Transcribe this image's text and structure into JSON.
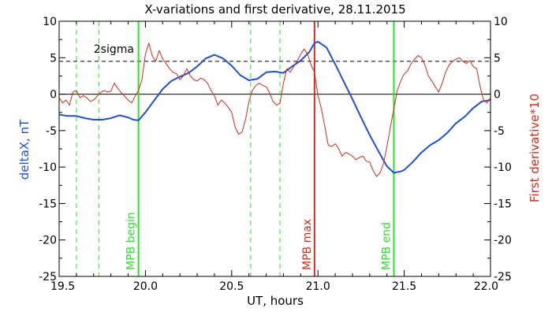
{
  "chart_data": {
    "type": "line",
    "title": "X-variations and first derivative, 28.11.2015",
    "xlabel": "UT, hours",
    "ylabel_left": "deltaX, nT",
    "ylabel_right": "First derivative*10",
    "xlim": [
      19.5,
      22.0
    ],
    "ylim": [
      -25,
      10
    ],
    "xticks": [
      19.5,
      20.0,
      20.5,
      21.0,
      21.5,
      22.0
    ],
    "xtick_labels": [
      "19.5",
      "20.0",
      "20.5",
      "21.0",
      "21.5",
      "22.0"
    ],
    "yticks": [
      10,
      5,
      0,
      -5,
      -10,
      -15,
      -20,
      -25
    ],
    "ytick_labels": [
      "10",
      "5",
      "0",
      "-5",
      "-10",
      "-15",
      "-20",
      "-25"
    ],
    "grid": false,
    "colors": {
      "deltaX": "#1f4fd6",
      "derivative": "#d62a1a",
      "mpb_edges": "#2ee02e",
      "mpb_max": "#d62a1a",
      "dashed_green": "#2ee02e",
      "zero_line": "#000000",
      "sigma_line": "#000000"
    },
    "sigma_level": 4.5,
    "annotations": [
      {
        "text": "2sigma",
        "x": 19.7,
        "y": 5.7
      }
    ],
    "vertical_lines": [
      {
        "x": 19.96,
        "label": "MPB begin",
        "color": "#2ee02e",
        "style": "solid"
      },
      {
        "x": 20.98,
        "label": "MPB max",
        "color": "#d62a1a",
        "style": "solid"
      },
      {
        "x": 21.44,
        "label": "MPB end",
        "color": "#2ee02e",
        "style": "solid"
      },
      {
        "x": 19.6,
        "label": "",
        "color": "#2ee02e",
        "style": "dashed"
      },
      {
        "x": 19.73,
        "label": "",
        "color": "#2ee02e",
        "style": "dashed"
      },
      {
        "x": 20.61,
        "label": "",
        "color": "#2ee02e",
        "style": "dashed"
      },
      {
        "x": 20.78,
        "label": "",
        "color": "#2ee02e",
        "style": "dashed"
      }
    ],
    "series": [
      {
        "key": "deltaX",
        "x": [
          19.5,
          19.55,
          19.6,
          19.65,
          19.7,
          19.75,
          19.8,
          19.85,
          19.9,
          19.93,
          19.96,
          20.0,
          20.05,
          20.1,
          20.15,
          20.2,
          20.25,
          20.3,
          20.35,
          20.4,
          20.45,
          20.5,
          20.55,
          20.6,
          20.65,
          20.7,
          20.75,
          20.8,
          20.85,
          20.9,
          20.95,
          20.98,
          21.0,
          21.05,
          21.1,
          21.15,
          21.2,
          21.25,
          21.3,
          21.35,
          21.4,
          21.44,
          21.48,
          21.5,
          21.55,
          21.6,
          21.65,
          21.7,
          21.75,
          21.8,
          21.85,
          21.9,
          21.95,
          22.0
        ],
        "values": [
          -2.8,
          -3.0,
          -3.0,
          -3.3,
          -3.5,
          -3.5,
          -3.3,
          -2.9,
          -3.2,
          -3.5,
          -3.6,
          -2.5,
          -0.9,
          0.7,
          1.8,
          2.4,
          2.9,
          3.8,
          4.9,
          5.4,
          4.9,
          3.9,
          2.6,
          1.9,
          2.1,
          3.0,
          3.1,
          2.9,
          3.8,
          4.6,
          5.8,
          7.0,
          7.2,
          6.4,
          4.1,
          1.7,
          -0.7,
          -3.2,
          -5.6,
          -7.8,
          -9.9,
          -10.8,
          -10.6,
          -10.4,
          -9.3,
          -8.0,
          -7.0,
          -6.3,
          -5.3,
          -4.0,
          -3.1,
          -1.9,
          -1.0,
          -0.8
        ]
      },
      {
        "key": "derivative",
        "x": [
          19.5,
          19.52,
          19.54,
          19.56,
          19.58,
          19.6,
          19.62,
          19.64,
          19.66,
          19.68,
          19.7,
          19.72,
          19.74,
          19.76,
          19.78,
          19.8,
          19.82,
          19.84,
          19.86,
          19.88,
          19.9,
          19.92,
          19.94,
          19.96,
          19.98,
          20.0,
          20.02,
          20.04,
          20.06,
          20.08,
          20.1,
          20.12,
          20.14,
          20.16,
          20.18,
          20.2,
          20.22,
          20.24,
          20.26,
          20.28,
          20.3,
          20.32,
          20.34,
          20.36,
          20.38,
          20.4,
          20.42,
          20.44,
          20.46,
          20.48,
          20.5,
          20.52,
          20.54,
          20.56,
          20.58,
          20.6,
          20.62,
          20.64,
          20.66,
          20.68,
          20.7,
          20.72,
          20.74,
          20.76,
          20.78,
          20.8,
          20.82,
          20.84,
          20.86,
          20.88,
          20.9,
          20.92,
          20.94,
          20.96,
          20.98,
          21.0,
          21.02,
          21.04,
          21.06,
          21.08,
          21.1,
          21.12,
          21.14,
          21.16,
          21.18,
          21.2,
          21.22,
          21.24,
          21.26,
          21.28,
          21.3,
          21.32,
          21.34,
          21.36,
          21.38,
          21.4,
          21.42,
          21.44,
          21.46,
          21.48,
          21.5,
          21.52,
          21.54,
          21.56,
          21.58,
          21.6,
          21.62,
          21.64,
          21.66,
          21.68,
          21.7,
          21.72,
          21.74,
          21.76,
          21.78,
          21.8,
          21.82,
          21.84,
          21.86,
          21.88,
          21.9,
          21.92,
          21.94,
          21.96,
          21.98,
          22.0
        ],
        "values": [
          -0.5,
          -1.2,
          -0.8,
          -1.5,
          0.3,
          0.5,
          -0.5,
          -0.2,
          -0.5,
          -1.0,
          -0.8,
          -0.3,
          0.2,
          0.5,
          0.3,
          0.4,
          1.5,
          0.8,
          0.2,
          -0.3,
          -0.8,
          -1.2,
          -0.3,
          0.5,
          2.0,
          5.5,
          7.0,
          5.2,
          4.5,
          6.0,
          4.8,
          4.2,
          3.5,
          3.0,
          2.8,
          2.0,
          2.5,
          3.5,
          2.5,
          2.0,
          1.8,
          2.2,
          2.0,
          1.5,
          0.5,
          -0.2,
          -1.5,
          -0.8,
          -1.2,
          -1.8,
          -2.5,
          -4.5,
          -5.5,
          -5.2,
          -3.5,
          -1.0,
          0.5,
          1.2,
          1.5,
          1.2,
          1.0,
          0.2,
          -1.0,
          -1.5,
          -1.2,
          1.5,
          3.5,
          3.0,
          3.8,
          4.5,
          5.5,
          6.2,
          5.5,
          4.0,
          3.0,
          -0.2,
          -2.0,
          -4.5,
          -7.0,
          -7.2,
          -6.8,
          -7.5,
          -8.5,
          -8.0,
          -8.2,
          -8.5,
          -9.0,
          -8.7,
          -8.5,
          -9.2,
          -9.3,
          -10.5,
          -11.3,
          -10.8,
          -9.5,
          -7.2,
          -4.5,
          -2.0,
          0.5,
          1.8,
          2.8,
          3.2,
          4.2,
          4.8,
          5.3,
          5.0,
          4.0,
          2.5,
          1.8,
          1.0,
          0.3,
          1.5,
          3.0,
          4.0,
          4.5,
          4.8,
          5.0,
          4.5,
          4.2,
          4.6,
          3.8,
          3.5,
          1.0,
          -0.8,
          -1.2,
          -0.5
        ]
      }
    ]
  }
}
